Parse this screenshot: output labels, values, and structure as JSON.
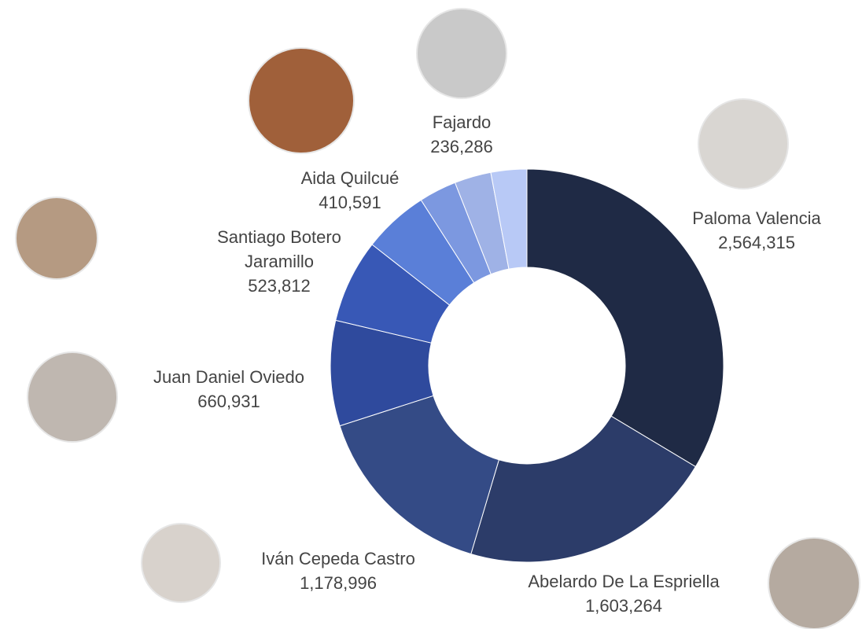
{
  "chart_data": {
    "type": "donut",
    "categories": [
      "Paloma Valencia",
      "Abelardo De La Espriella",
      "Iván Cepeda Castro",
      "Juan Daniel Oviedo",
      "Santiago Botero Jaramillo",
      "Aida Quilcué",
      "Fajardo",
      null,
      null
    ],
    "values": [
      2564315,
      1603264,
      1178996,
      660931,
      523812,
      410591,
      236286,
      230000,
      225000
    ],
    "value_labels": [
      "2,564,315",
      "1,603,264",
      "1,178,996",
      "660,931",
      "523,812",
      "410,591",
      "236,286",
      null,
      null
    ],
    "colors": [
      "#1f2a45",
      "#2c3c69",
      "#344b86",
      "#2f4a9d",
      "#3858b6",
      "#5a7fd8",
      "#7c98e0",
      "#9fb2e6",
      "#b8c9f6"
    ]
  }
}
